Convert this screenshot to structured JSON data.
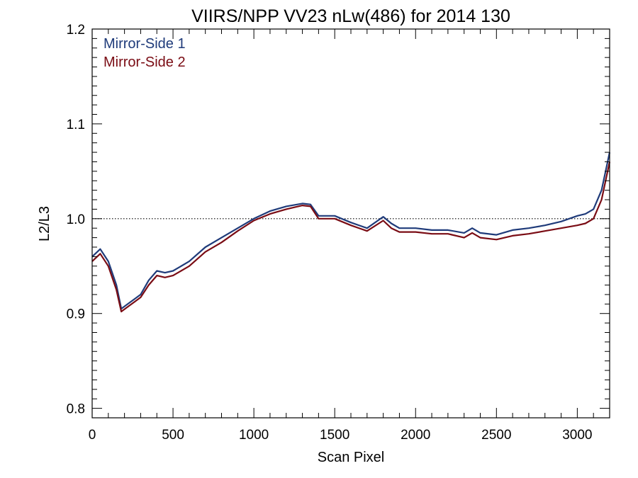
{
  "chart_data": {
    "type": "line",
    "title": "VIIRS/NPP VV23 nLw(486) for 2014 130",
    "xlabel": "Scan Pixel",
    "ylabel": "L2/L3",
    "xlim": [
      0,
      3200
    ],
    "ylim": [
      0.79,
      1.2
    ],
    "x_ticks": [
      0,
      500,
      1000,
      1500,
      2000,
      2500,
      3000
    ],
    "x_tick_labels": [
      "0",
      "500",
      "1000",
      "1500",
      "2000",
      "2500",
      "3000"
    ],
    "y_ticks": [
      0.8,
      0.9,
      1.0,
      1.1,
      1.2
    ],
    "y_tick_labels": [
      "0.8",
      "0.9",
      "1.0",
      "1.1",
      "1.2"
    ],
    "reference_line": {
      "y": 1.0,
      "style": "dotted"
    },
    "legend_position": "top-left",
    "colors": {
      "mirror_side_1": "#1f3b7a",
      "mirror_side_2": "#7a0c14"
    },
    "series": [
      {
        "name": "Mirror-Side 1",
        "color": "#1f3b7a",
        "x": [
          0,
          50,
          100,
          150,
          180,
          220,
          260,
          300,
          350,
          400,
          450,
          500,
          600,
          700,
          800,
          900,
          1000,
          1100,
          1200,
          1300,
          1350,
          1400,
          1500,
          1600,
          1700,
          1800,
          1850,
          1900,
          2000,
          2100,
          2200,
          2300,
          2350,
          2400,
          2500,
          2600,
          2700,
          2800,
          2900,
          3000,
          3050,
          3100,
          3150,
          3200
        ],
        "y": [
          0.96,
          0.968,
          0.955,
          0.93,
          0.905,
          0.91,
          0.915,
          0.92,
          0.935,
          0.945,
          0.943,
          0.945,
          0.955,
          0.97,
          0.98,
          0.99,
          1.0,
          1.008,
          1.013,
          1.016,
          1.015,
          1.003,
          1.003,
          0.996,
          0.99,
          1.002,
          0.995,
          0.99,
          0.99,
          0.988,
          0.988,
          0.985,
          0.99,
          0.985,
          0.983,
          0.988,
          0.99,
          0.993,
          0.997,
          1.003,
          1.005,
          1.01,
          1.03,
          1.07
        ]
      },
      {
        "name": "Mirror-Side 2",
        "color": "#7a0c14",
        "x": [
          0,
          50,
          100,
          150,
          180,
          220,
          260,
          300,
          350,
          400,
          450,
          500,
          600,
          700,
          800,
          900,
          1000,
          1100,
          1200,
          1300,
          1350,
          1400,
          1500,
          1600,
          1700,
          1800,
          1850,
          1900,
          2000,
          2100,
          2200,
          2300,
          2350,
          2400,
          2500,
          2600,
          2700,
          2800,
          2900,
          3000,
          3050,
          3100,
          3150,
          3200
        ],
        "y": [
          0.955,
          0.963,
          0.95,
          0.925,
          0.902,
          0.907,
          0.912,
          0.917,
          0.93,
          0.94,
          0.938,
          0.94,
          0.95,
          0.965,
          0.975,
          0.987,
          0.998,
          1.005,
          1.01,
          1.014,
          1.013,
          1.0,
          1.0,
          0.993,
          0.987,
          0.998,
          0.99,
          0.986,
          0.986,
          0.984,
          0.984,
          0.98,
          0.985,
          0.98,
          0.978,
          0.982,
          0.984,
          0.987,
          0.99,
          0.993,
          0.995,
          1.0,
          1.02,
          1.06
        ]
      }
    ]
  }
}
